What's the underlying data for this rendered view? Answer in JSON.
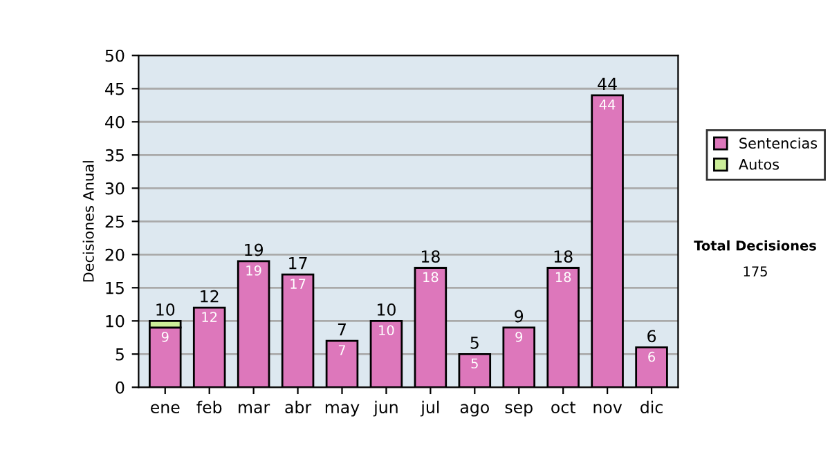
{
  "chart_data": {
    "type": "bar",
    "stacked": true,
    "ylabel": "Decisiones Anual",
    "categories": [
      "ene",
      "feb",
      "mar",
      "abr",
      "may",
      "jun",
      "jul",
      "ago",
      "sep",
      "oct",
      "nov",
      "dic"
    ],
    "series": [
      {
        "name": "Sentencias",
        "color": "#dd77bb",
        "values": [
          9,
          12,
          19,
          17,
          7,
          10,
          18,
          5,
          9,
          18,
          44,
          6
        ],
        "value_labels": [
          "9",
          "12",
          "19",
          "17",
          "7",
          "10",
          "18",
          "5",
          "9",
          "18",
          "44",
          "6"
        ]
      },
      {
        "name": "Autos",
        "color": "#ccee99",
        "values": [
          1,
          null,
          null,
          null,
          null,
          null,
          null,
          null,
          null,
          null,
          null,
          null
        ]
      }
    ],
    "totals": [
      "10",
      "12",
      "19",
      "17",
      "7",
      "10",
      "18",
      "5",
      "9",
      "18",
      "44",
      "6"
    ],
    "ylim": [
      0,
      50
    ],
    "yticks": [
      0,
      5,
      10,
      15,
      20,
      25,
      30,
      35,
      40,
      45,
      50
    ],
    "grid": "y",
    "legend": "right",
    "annotations": [
      "Total Decisiones",
      "175"
    ]
  }
}
